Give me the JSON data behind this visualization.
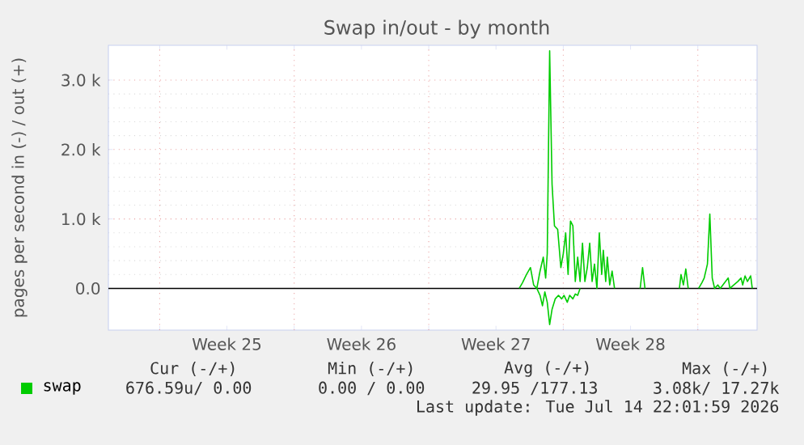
{
  "chart_data": {
    "type": "line",
    "title": "Swap in/out - by month",
    "ylabel": "pages per second in (-) / out (+)",
    "xlim": [
      "2026-06-12T08:00",
      "2026-07-16T02:00"
    ],
    "ylim": [
      -600,
      3500
    ],
    "xticks": [
      {
        "value": "2026-06-15",
        "label": null
      },
      {
        "value": "2026-06-18T12:00",
        "label": "Week 25"
      },
      {
        "value": "2026-06-22",
        "label": null
      },
      {
        "value": "2026-06-25T12:00",
        "label": "Week 26"
      },
      {
        "value": "2026-06-29",
        "label": null
      },
      {
        "value": "2026-07-02T12:00",
        "label": "Week 27"
      },
      {
        "value": "2026-07-06",
        "label": null
      },
      {
        "value": "2026-07-09T12:00",
        "label": "Week 28"
      },
      {
        "value": "2026-07-13",
        "label": null
      }
    ],
    "yticks": [
      {
        "value": 0,
        "label": "0.0"
      },
      {
        "value": 1000,
        "label": "1.0 k"
      },
      {
        "value": 2000,
        "label": "2.0 k"
      },
      {
        "value": 3000,
        "label": "3.0 k"
      }
    ],
    "grid": true,
    "legend": "bottom left",
    "series": [
      {
        "name": "swap",
        "color": "#00cc00",
        "x": [
          "2026-07-03T17:00",
          "2026-07-03T21:00",
          "2026-07-04T02:00",
          "2026-07-04T07:00",
          "2026-07-04T11:00",
          "2026-07-04T15:00",
          "2026-07-04T19:00",
          "2026-07-04T23:00",
          "2026-07-05T02:00",
          "2026-07-05T04:00",
          "2026-07-05T07:00",
          "2026-07-05T10:00",
          "2026-07-05T13:00",
          "2026-07-05T17:00",
          "2026-07-05T21:00",
          "2026-07-06T00:00",
          "2026-07-06T03:00",
          "2026-07-06T06:00",
          "2026-07-06T09:00",
          "2026-07-06T12:00",
          "2026-07-06T15:00",
          "2026-07-06T18:00",
          "2026-07-06T21:00",
          "2026-07-07T00:00",
          "2026-07-07T03:00",
          "2026-07-07T06:00",
          "2026-07-07T09:00",
          "2026-07-07T12:00",
          "2026-07-07T15:00",
          "2026-07-07T18:00",
          "2026-07-07T21:00",
          "2026-07-08T00:00",
          "2026-07-08T02:00",
          "2026-07-08T05:00",
          "2026-07-08T07:00",
          "2026-07-08T10:00",
          "2026-07-08T13:00",
          "2026-07-08T16:00",
          "2026-07-09T04:00",
          "2026-07-10T00:00",
          "2026-07-10T03:00",
          "2026-07-10T06:00",
          "2026-07-11T00:00",
          "2026-07-12T01:00",
          "2026-07-12T03:00",
          "2026-07-12T06:00",
          "2026-07-12T09:00",
          "2026-07-12T12:00",
          "2026-07-12T18:00",
          "2026-07-13T01:00",
          "2026-07-13T05:00",
          "2026-07-13T08:00",
          "2026-07-13T12:00",
          "2026-07-13T15:00",
          "2026-07-13T18:00",
          "2026-07-13T21:00",
          "2026-07-14T01:00",
          "2026-07-14T04:00",
          "2026-07-14T14:00",
          "2026-07-14T16:00",
          "2026-07-14T21:00",
          "2026-07-15T02:00",
          "2026-07-15T06:00",
          "2026-07-15T08:00",
          "2026-07-15T11:00",
          "2026-07-15T14:00",
          "2026-07-15T18:00",
          "2026-07-15T20:00"
        ],
        "values": [
          0,
          80,
          200,
          300,
          50,
          0,
          250,
          450,
          150,
          500,
          3420,
          1500,
          900,
          850,
          300,
          500,
          800,
          200,
          970,
          900,
          100,
          450,
          100,
          650,
          100,
          300,
          650,
          100,
          350,
          0,
          800,
          200,
          550,
          100,
          450,
          50,
          250,
          0,
          null,
          0,
          300,
          0,
          null,
          0,
          200,
          50,
          280,
          0,
          null,
          0,
          80,
          150,
          350,
          1070,
          150,
          0,
          50,
          0,
          150,
          0,
          50,
          100,
          150,
          50,
          180,
          100,
          180,
          0
        ]
      },
      {
        "color": "#00cc00",
        "x": [
          "2026-07-04T15:00",
          "2026-07-04T19:00",
          "2026-07-04T22:00",
          "2026-07-05T01:00",
          "2026-07-05T04:00",
          "2026-07-05T07:00",
          "2026-07-05T10:00",
          "2026-07-05T14:00",
          "2026-07-05T18:00",
          "2026-07-05T22:00",
          "2026-07-06T01:00",
          "2026-07-06T05:00",
          "2026-07-06T08:00",
          "2026-07-06T12:00",
          "2026-07-06T15:00",
          "2026-07-06T18:00",
          "2026-07-06T21:00"
        ],
        "values": [
          0,
          -100,
          -250,
          -50,
          -200,
          -520,
          -300,
          -150,
          -100,
          -150,
          -100,
          -200,
          -100,
          -150,
          -80,
          -100,
          0
        ]
      }
    ],
    "ref_lines": [
      {
        "axis": "y",
        "value": 0,
        "color": "#000000"
      }
    ],
    "annotations": [
      "Cur (-/+)",
      "Min (-/+)",
      "Avg (-/+)",
      "Max (-/+)",
      "676.59u/  0.00",
      "0.00 /  0.00",
      "29.95 /177.13",
      "3.08k/ 17.27k",
      "Last update: Tue Jul 14 22:01:59 2026"
    ]
  }
}
